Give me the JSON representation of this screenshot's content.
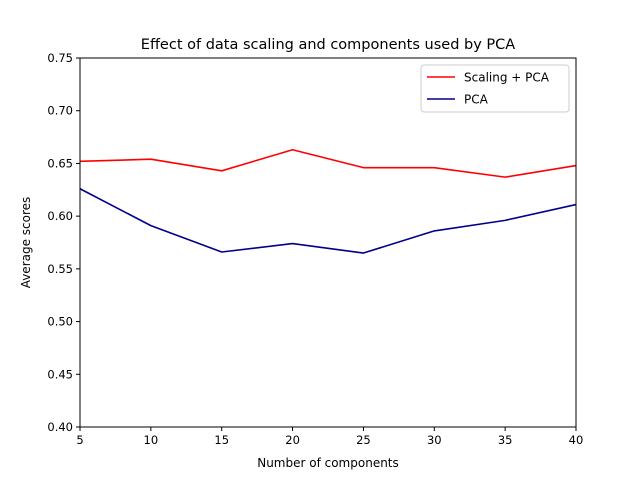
{
  "chart_data": {
    "type": "line",
    "title": "Effect of data scaling and components used by PCA",
    "xlabel": "Number of components",
    "ylabel": "Average scores",
    "x": [
      5,
      10,
      15,
      20,
      25,
      30,
      35,
      40
    ],
    "xlim": [
      5,
      40
    ],
    "ylim": [
      0.4,
      0.75
    ],
    "xticks": [
      "5",
      "10",
      "15",
      "20",
      "25",
      "30",
      "35",
      "40"
    ],
    "yticks": [
      "0.40",
      "0.45",
      "0.50",
      "0.55",
      "0.60",
      "0.65",
      "0.70",
      "0.75"
    ],
    "grid": false,
    "legend_position": "top-right",
    "series": [
      {
        "name": "Scaling + PCA",
        "color": "#ff0000",
        "values": [
          0.652,
          0.654,
          0.643,
          0.663,
          0.646,
          0.646,
          0.637,
          0.648
        ]
      },
      {
        "name": "PCA",
        "color": "#00008b",
        "values": [
          0.626,
          0.591,
          0.566,
          0.574,
          0.565,
          0.586,
          0.596,
          0.611
        ]
      }
    ]
  }
}
